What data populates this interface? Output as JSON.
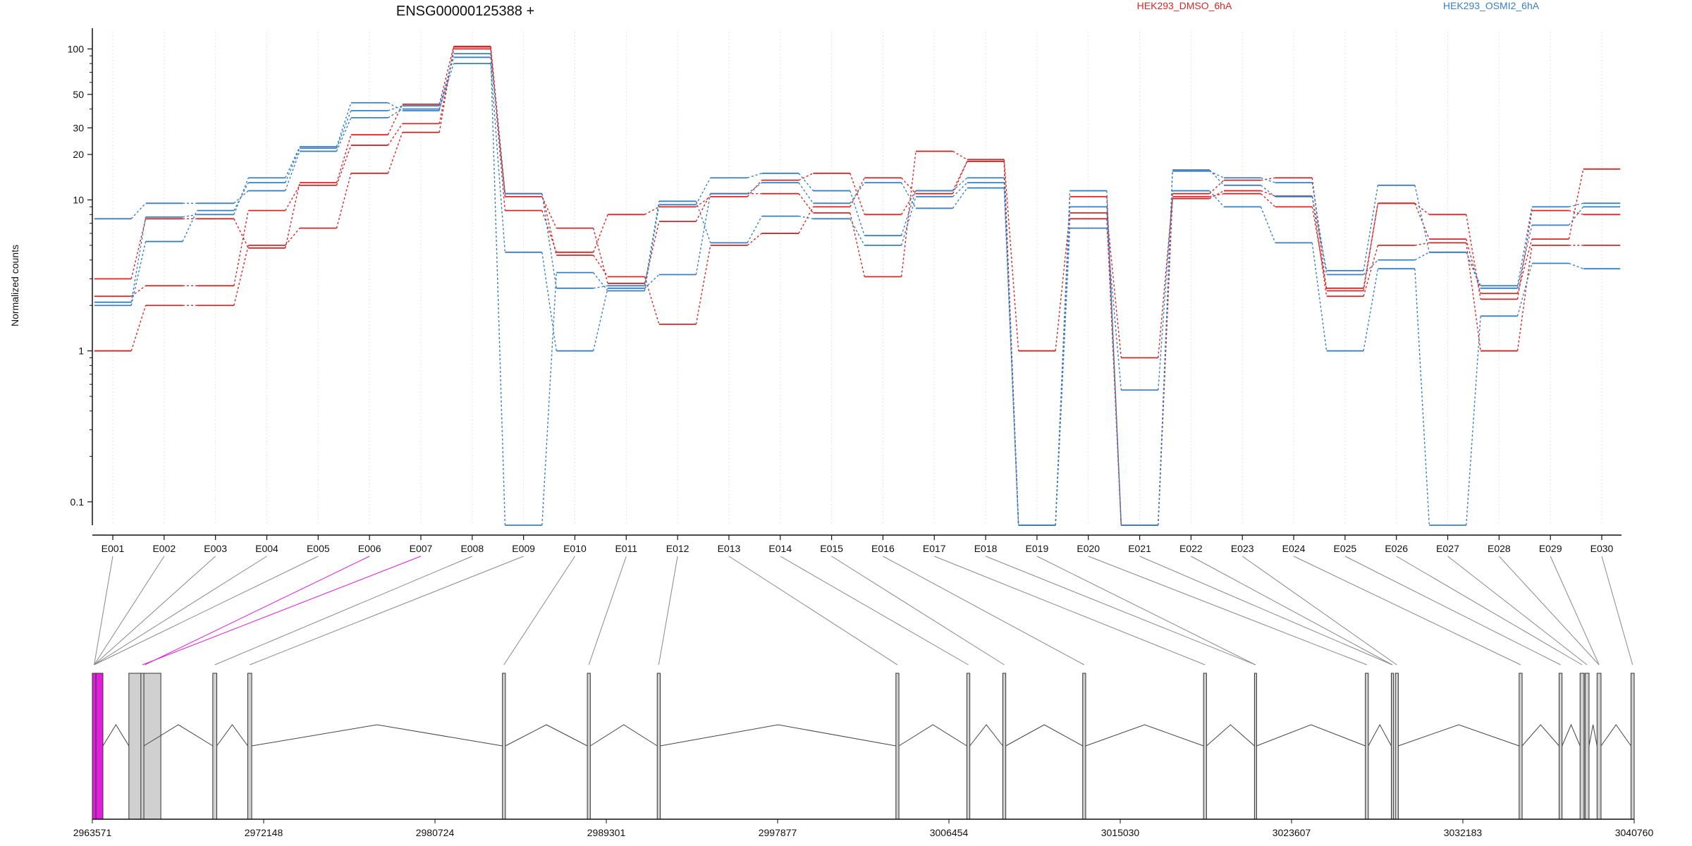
{
  "chart_data": {
    "type": "line",
    "title": "ENSG00000125388 +",
    "ylabel": "Normalized counts",
    "xlabel": "",
    "yscale": "log",
    "ylim": [
      0.07,
      130
    ],
    "yticks": [
      0.1,
      1,
      10,
      20,
      30,
      50,
      100
    ],
    "ytick_labels": [
      "0.1",
      "1",
      "10",
      "20",
      "30",
      "50",
      "100"
    ],
    "grid": "vertical dotted lines at exon ticks",
    "legend": [
      {
        "name": "HEK293_DMSO_6hA",
        "color": "#d62728",
        "position": "top"
      },
      {
        "name": "HEK293_OSMI2_6hA",
        "color": "#3a7fc1",
        "position": "top"
      }
    ],
    "categories": [
      "E001",
      "E002",
      "E003",
      "E004",
      "E005",
      "E006",
      "E007",
      "E008",
      "E009",
      "E010",
      "E011",
      "E012",
      "E013",
      "E014",
      "E015",
      "E016",
      "E017",
      "E018",
      "E019",
      "E020",
      "E021",
      "E022",
      "E023",
      "E024",
      "E025",
      "E026",
      "E027",
      "E028",
      "E029",
      "E030"
    ],
    "series": [
      {
        "group": "HEK293_DMSO_6hA",
        "color": "#d62728",
        "values": [
          1.0,
          2.0,
          2.0,
          5.0,
          6.5,
          15,
          28,
          103,
          10.5,
          6.5,
          2.8,
          7.2,
          11,
          11,
          8.2,
          3.1,
          21,
          18.5,
          1.0,
          8.2,
          0.9,
          10.2,
          11.5,
          10.6,
          2.3,
          5.0,
          5.2,
          1.0,
          5.0,
          5.0
        ]
      },
      {
        "group": "HEK293_DMSO_6hA",
        "color": "#d62728",
        "values": [
          2.3,
          2.7,
          2.7,
          8.5,
          12.5,
          23,
          32,
          100,
          8.5,
          4.5,
          8.0,
          9.0,
          10.5,
          13.5,
          15,
          8.0,
          11.5,
          18.0,
          0.07,
          10.5,
          0.07,
          11,
          13.5,
          14.0,
          2.5,
          9.5,
          8.0,
          2.2,
          8.5,
          8.0
        ]
      },
      {
        "group": "HEK293_DMSO_6hA",
        "color": "#d62728",
        "values": [
          3.0,
          7.5,
          7.5,
          4.8,
          13,
          27,
          43,
          104,
          11,
          4.3,
          3.1,
          1.5,
          5.0,
          6.0,
          9.0,
          14,
          11,
          18.0,
          0.07,
          7.5,
          0.07,
          10.5,
          11.0,
          9.0,
          2.6,
          9.5,
          5.5,
          2.4,
          5.5,
          16.0
        ]
      },
      {
        "group": "HEK293_OSMI2_6hA",
        "color": "#3a7fc1",
        "values": [
          7.5,
          9.5,
          9.5,
          11.5,
          21,
          35,
          40,
          80,
          4.5,
          1.0,
          2.6,
          3.2,
          11.0,
          13,
          9.5,
          13,
          8.8,
          12.0,
          0.07,
          6.5,
          0.55,
          11.5,
          9.0,
          5.2,
          1.0,
          3.5,
          0.07,
          1.7,
          3.8,
          3.5
        ]
      },
      {
        "group": "HEK293_OSMI2_6hA",
        "color": "#3a7fc1",
        "values": [
          2.0,
          5.3,
          8.5,
          13,
          22,
          39,
          42,
          88,
          11,
          2.6,
          2.7,
          9.8,
          5.2,
          7.8,
          7.5,
          5.0,
          10.5,
          13.0,
          0.07,
          11.5,
          0.07,
          15.5,
          14,
          13,
          3.2,
          4.0,
          4.5,
          2.6,
          6.8,
          9.0
        ]
      },
      {
        "group": "HEK293_OSMI2_6hA",
        "color": "#3a7fc1",
        "values": [
          2.1,
          7.7,
          8.0,
          14,
          22.5,
          44,
          39,
          93,
          0.07,
          3.3,
          2.5,
          9.3,
          14,
          15,
          11.5,
          5.8,
          11.5,
          14.0,
          0.07,
          9.0,
          0.07,
          15.8,
          12.5,
          10.5,
          3.4,
          12.5,
          4.5,
          2.7,
          9.0,
          9.5
        ]
      }
    ],
    "genomic_axis": {
      "tick_labels": [
        "2963571",
        "2972148",
        "2980724",
        "2989301",
        "2997877",
        "3006454",
        "3015030",
        "3023607",
        "3032183",
        "3040760"
      ],
      "exon_starts": [
        2963571,
        2963750,
        2965400,
        2966000,
        2969600,
        2971350,
        2984100,
        2988350,
        2991850,
        3003800,
        3007350,
        3009150,
        3013150,
        3019200,
        3021750,
        3027300,
        3028600,
        3028800,
        3035000,
        3037000,
        3038050,
        3038300,
        3038900,
        3040600
      ],
      "exon_ends": [
        2963750,
        2964100,
        2967000,
        2966150,
        2969800,
        2971550,
        2984250,
        2988500,
        2992000,
        3003950,
        3007500,
        3009300,
        3013300,
        3019350,
        3021850,
        3027450,
        3028700,
        3028950,
        3035150,
        3037150,
        3038250,
        3038500,
        3039100,
        3040760
      ],
      "highlighted_exons": [
        0,
        1
      ],
      "highlight_color": "#e01fd8",
      "exon_links": [
        [
          1,
          0
        ],
        [
          2,
          0
        ],
        [
          3,
          0
        ],
        [
          4,
          0
        ],
        [
          5,
          0
        ],
        [
          6,
          2
        ],
        [
          7,
          3
        ],
        [
          8,
          4
        ],
        [
          9,
          5
        ],
        [
          10,
          6
        ],
        [
          11,
          7
        ],
        [
          12,
          8
        ],
        [
          13,
          9
        ],
        [
          14,
          10
        ],
        [
          15,
          11
        ],
        [
          16,
          12
        ],
        [
          17,
          13
        ],
        [
          18,
          14
        ],
        [
          19,
          14
        ],
        [
          20,
          15
        ],
        [
          21,
          16
        ],
        [
          22,
          16
        ],
        [
          23,
          17
        ],
        [
          24,
          18
        ],
        [
          25,
          19
        ],
        [
          26,
          20
        ],
        [
          27,
          21
        ],
        [
          28,
          22
        ],
        [
          29,
          22
        ],
        [
          30,
          23
        ]
      ],
      "highlighted_links": [
        5,
        6
      ]
    }
  }
}
